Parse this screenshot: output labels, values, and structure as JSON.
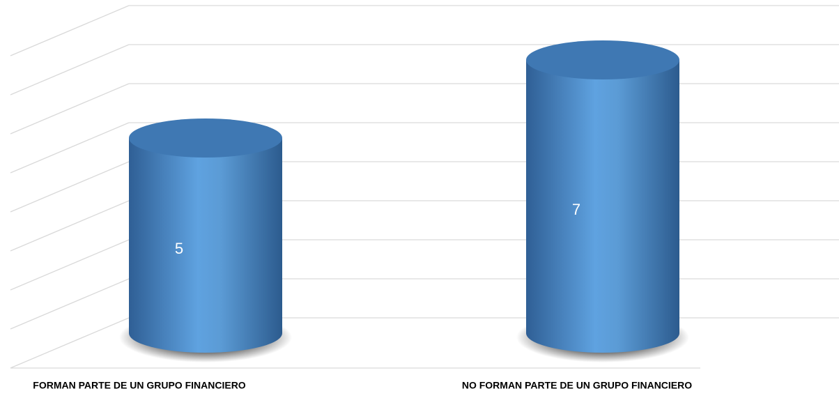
{
  "chart_data": {
    "type": "cylinder",
    "categories": [
      "FORMAN PARTE DE UN GRUPO FINANCIERO",
      "NO FORMAN PARTE DE UN GRUPO FINANCIERO"
    ],
    "values": [
      5,
      7
    ],
    "color": "#5b9bd5",
    "ylim": [
      0,
      8
    ],
    "yticks": [
      0,
      1,
      2,
      3,
      4,
      5,
      6,
      7,
      8
    ],
    "grid": true
  }
}
